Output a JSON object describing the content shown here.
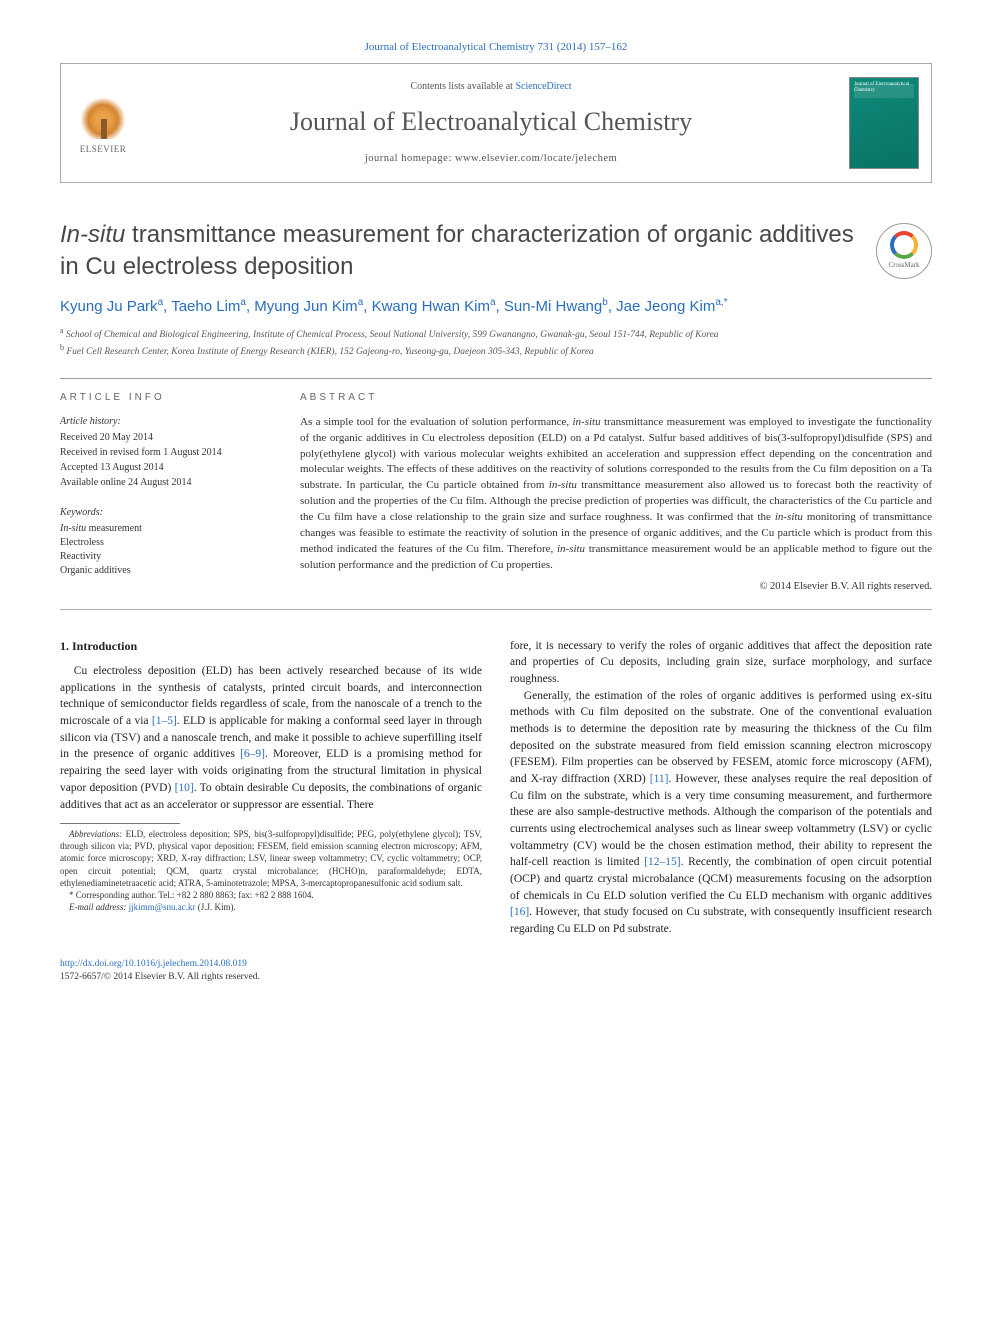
{
  "header": {
    "citation": "Journal of Electroanalytical Chemistry 731 (2014) 157–162",
    "contents_prefix": "Contents lists available at ",
    "contents_link": "ScienceDirect",
    "journal_name": "Journal of Electroanalytical Chemistry",
    "homepage_label": "journal homepage: ",
    "homepage_url": "www.elsevier.com/locate/jelechem",
    "publisher_logo_text": "ELSEVIER",
    "cover_label": "Journal of Electroanalytical Chemistry"
  },
  "crossmark_label": "CrossMark",
  "title_italic": "In-situ",
  "title_rest": " transmittance measurement for characterization of organic additives in Cu electroless deposition",
  "authors_html": "Kyung Ju Park<sup>a</sup>, Taeho Lim<sup>a</sup>, Myung Jun Kim<sup>a</sup>, Kwang Hwan Kim<sup>a</sup>, Sun-Mi Hwang<sup>b</sup>, Jae Jeong Kim<sup>a,*</sup>",
  "affiliations": [
    "a School of Chemical and Biological Engineering, Institute of Chemical Process, Seoul National University, 599 Gwanangno, Gwanak-gu, Seoul 151-744, Republic of Korea",
    "b Fuel Cell Research Center, Korea Institute of Energy Research (KIER), 152 Gajeong-ro, Yuseong-gu, Daejeon 305-343, Republic of Korea"
  ],
  "article_info": {
    "heading": "ARTICLE INFO",
    "history_label": "Article history:",
    "history": [
      "Received 20 May 2014",
      "Received in revised form 1 August 2014",
      "Accepted 13 August 2014",
      "Available online 24 August 2014"
    ],
    "keywords_label": "Keywords:",
    "keywords": [
      "In-situ measurement",
      "Electroless",
      "Reactivity",
      "Organic additives"
    ]
  },
  "abstract": {
    "heading": "ABSTRACT",
    "text": "As a simple tool for the evaluation of solution performance, in-situ transmittance measurement was employed to investigate the functionality of the organic additives in Cu electroless deposition (ELD) on a Pd catalyst. Sulfur based additives of bis(3-sulfopropyl)disulfide (SPS) and poly(ethylene glycol) with various molecular weights exhibited an acceleration and suppression effect depending on the concentration and molecular weights. The effects of these additives on the reactivity of solutions corresponded to the results from the Cu film deposition on a Ta substrate. In particular, the Cu particle obtained from in-situ transmittance measurement also allowed us to forecast both the reactivity of solution and the properties of the Cu film. Although the precise prediction of properties was difficult, the characteristics of the Cu particle and the Cu film have a close relationship to the grain size and surface roughness. It was confirmed that the in-situ monitoring of transmittance changes was feasible to estimate the reactivity of solution in the presence of organic additives, and the Cu particle which is product from this method indicated the features of the Cu film. Therefore, in-situ transmittance measurement would be an applicable method to figure out the solution performance and the prediction of Cu properties.",
    "copyright": "© 2014 Elsevier B.V. All rights reserved."
  },
  "body": {
    "section_num": "1.",
    "section_title": "Introduction",
    "p1a": "Cu electroless deposition (ELD) has been actively researched because of its wide applications in the synthesis of catalysts, printed circuit boards, and interconnection technique of semiconductor fields regardless of scale, from the nanoscale of a trench to the microscale of a via ",
    "ref1": "[1–5]",
    "p1b": ". ELD is applicable for making a conformal seed layer in through silicon via (TSV) and a nanoscale trench, and make it possible to achieve superfilling itself in the presence of organic additives ",
    "ref2": "[6–9]",
    "p1c": ". Moreover, ELD is a promising method for repairing the seed layer with voids originating from the structural limitation in physical vapor deposition (PVD) ",
    "ref3": "[10]",
    "p1d": ". To obtain desirable Cu deposits, the combinations of organic additives that act as an accelerator or suppressor are essential. There",
    "p1e": "fore, it is necessary to verify the roles of organic additives that affect the deposition rate and properties of Cu deposits, including grain size, surface morphology, and surface roughness.",
    "p2a": "Generally, the estimation of the roles of organic additives is performed using ex-situ methods with Cu film deposited on the substrate. One of the conventional evaluation methods is to determine the deposition rate by measuring the thickness of the Cu film deposited on the substrate measured from field emission scanning electron microscopy (FESEM). Film properties can be observed by FESEM, atomic force microscopy (AFM), and X-ray diffraction (XRD) ",
    "ref4": "[11]",
    "p2b": ". However, these analyses require the real deposition of Cu film on the substrate, which is a very time consuming measurement, and furthermore these are also sample-destructive methods. Although the comparison of the potentials and currents using electrochemical analyses such as linear sweep voltammetry (LSV) or cyclic voltammetry (CV) would be the chosen estimation method, their ability to represent the half-cell reaction is limited ",
    "ref5": "[12–15]",
    "p2c": ". Recently, the combination of open circuit potential (OCP) and quartz crystal microbalance (QCM) measurements focusing on the adsorption of chemicals in Cu ELD solution verified the Cu ELD mechanism with organic additives ",
    "ref6": "[16]",
    "p2d": ". However, that study focused on Cu substrate, with consequently insufficient research regarding Cu ELD on Pd substrate."
  },
  "footnotes": {
    "abbrev_label": "Abbreviations:",
    "abbrev_text": " ELD, electroless deposition; SPS, bis(3-sulfopropyl)disulfide; PEG, poly(ethylene glycol); TSV, through silicon via; PVD, physical vapor deposition; FESEM, field emission scanning electron microscopy; AFM, atomic force microscopy; XRD, X-ray diffraction; LSV, linear sweep voltammetry; CV, cyclic voltammetry; OCP, open circuit potential; QCM, quartz crystal microbalance; (HCHO)n, paraformaldehyde; EDTA, ethylenediaminetetraacetic acid; ATRA, 5-aminotetrazole; MPSA, 3-mercaptopropanesulfonic acid sodium salt.",
    "corr_label": "* Corresponding author. ",
    "corr_text": "Tel.: +82 2 880 8863; fax: +82 2 888 1604.",
    "email_label": "E-mail address: ",
    "email": "jjkimm@snu.ac.kr",
    "email_suffix": " (J.J. Kim)."
  },
  "footer": {
    "doi_label": "http://dx.doi.org/",
    "doi": "10.1016/j.jelechem.2014.08.019",
    "issn_line": "1572-6657/© 2014 Elsevier B.V. All rights reserved."
  },
  "colors": {
    "link": "#2a6ebb",
    "text": "#333333",
    "cover_bg": "#0d8a7a"
  }
}
